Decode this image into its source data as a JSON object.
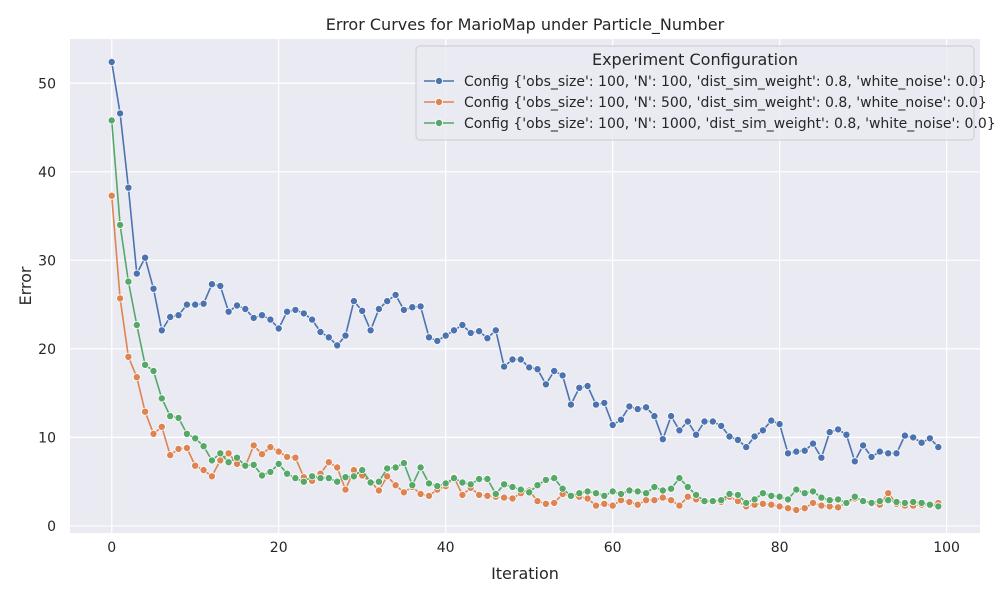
{
  "chart_data": {
    "type": "line",
    "title": "Error Curves for MarioMap under Particle_Number",
    "xlabel": "Iteration",
    "ylabel": "Error",
    "xlim": [
      -5,
      104
    ],
    "ylim": [
      -0.8,
      55
    ],
    "xticks": [
      0,
      20,
      40,
      60,
      80,
      100
    ],
    "yticks": [
      0,
      10,
      20,
      30,
      40,
      50
    ],
    "grid": true,
    "legend": {
      "title": "Experiment Configuration",
      "placement": "top-right"
    },
    "series": [
      {
        "name": "Config {'obs_size': 100, 'N': 100, 'dist_sim_weight': 0.8, 'white_noise': 0.0}",
        "color": "#4c72b0",
        "values": [
          52.4,
          46.6,
          38.2,
          28.5,
          30.3,
          26.8,
          22.1,
          23.6,
          23.8,
          25.0,
          25.0,
          25.1,
          27.3,
          27.1,
          24.2,
          24.9,
          24.5,
          23.5,
          23.8,
          23.3,
          22.3,
          24.2,
          24.4,
          24.0,
          23.3,
          21.9,
          21.3,
          20.4,
          21.5,
          25.4,
          24.3,
          22.1,
          24.5,
          25.4,
          26.1,
          24.4,
          24.7,
          24.8,
          21.3,
          20.9,
          21.5,
          22.1,
          22.7,
          21.8,
          22.0,
          21.2,
          22.1,
          18.0,
          18.8,
          18.8,
          17.9,
          17.7,
          16.0,
          17.5,
          17.0,
          13.7,
          15.6,
          15.8,
          13.7,
          13.9,
          11.4,
          12.0,
          13.5,
          13.2,
          13.4,
          12.4,
          9.8,
          12.4,
          10.8,
          11.8,
          10.3,
          11.8,
          11.8,
          11.3,
          10.1,
          9.7,
          8.9,
          10.1,
          10.8,
          11.9,
          11.5,
          8.2,
          8.4,
          8.5,
          9.3,
          7.7,
          10.6,
          10.9,
          10.3,
          7.3,
          9.1,
          7.8,
          8.4,
          8.2,
          8.2,
          10.2,
          10.0,
          9.4,
          9.9,
          8.9
        ]
      },
      {
        "name": "Config {'obs_size': 100, 'N': 500, 'dist_sim_weight': 0.8, 'white_noise': 0.0}",
        "color": "#dd8452",
        "values": [
          37.3,
          25.7,
          19.1,
          16.8,
          12.9,
          10.4,
          11.2,
          8.0,
          8.7,
          8.8,
          6.8,
          6.3,
          5.6,
          7.4,
          8.2,
          7.0,
          6.7,
          9.1,
          8.1,
          8.9,
          8.4,
          7.8,
          7.7,
          5.5,
          5.1,
          5.9,
          7.2,
          6.6,
          4.1,
          6.3,
          5.7,
          5.0,
          4.0,
          5.6,
          4.6,
          3.8,
          4.4,
          3.6,
          3.4,
          4.1,
          4.5,
          5.5,
          3.5,
          4.3,
          3.5,
          3.4,
          3.3,
          3.2,
          3.1,
          3.7,
          4.0,
          2.8,
          2.5,
          2.6,
          3.6,
          3.4,
          3.3,
          3.1,
          2.3,
          2.5,
          2.3,
          2.9,
          2.7,
          2.4,
          2.9,
          2.9,
          3.2,
          2.9,
          2.3,
          3.3,
          3.0,
          2.7,
          2.8,
          2.7,
          3.3,
          2.8,
          2.2,
          2.4,
          2.5,
          2.4,
          2.2,
          2.0,
          1.8,
          2.0,
          2.6,
          2.3,
          2.2,
          2.1,
          2.6,
          3.1,
          2.9,
          2.5,
          2.4,
          3.7,
          2.5,
          2.3,
          2.3,
          2.4,
          2.3,
          2.6
        ]
      },
      {
        "name": "Config {'obs_size': 100, 'N': 1000, 'dist_sim_weight': 0.8, 'white_noise': 0.0}",
        "color": "#55a868",
        "values": [
          45.8,
          34.0,
          27.6,
          22.7,
          18.2,
          17.5,
          14.4,
          12.4,
          12.2,
          10.4,
          9.9,
          9.0,
          7.4,
          8.2,
          7.2,
          7.7,
          6.8,
          6.9,
          5.7,
          6.1,
          7.0,
          5.9,
          5.4,
          5.0,
          5.6,
          5.4,
          5.4,
          5.0,
          5.5,
          5.6,
          6.3,
          4.9,
          5.0,
          6.5,
          6.6,
          7.1,
          4.6,
          6.6,
          4.8,
          4.5,
          4.8,
          5.4,
          4.9,
          4.7,
          5.3,
          5.3,
          3.6,
          4.7,
          4.4,
          4.1,
          3.8,
          4.6,
          5.2,
          5.4,
          4.2,
          3.4,
          3.7,
          3.9,
          3.7,
          3.4,
          3.9,
          3.6,
          4.0,
          3.9,
          3.7,
          4.4,
          4.0,
          4.2,
          5.4,
          4.4,
          3.5,
          2.8,
          2.8,
          2.9,
          3.6,
          3.5,
          2.6,
          3.0,
          3.7,
          3.4,
          3.3,
          3.0,
          4.1,
          3.7,
          3.9,
          3.2,
          2.9,
          3.0,
          2.6,
          3.3,
          2.8,
          2.6,
          2.8,
          2.9,
          2.7,
          2.6,
          2.7,
          2.6,
          2.4,
          2.2
        ]
      }
    ]
  }
}
